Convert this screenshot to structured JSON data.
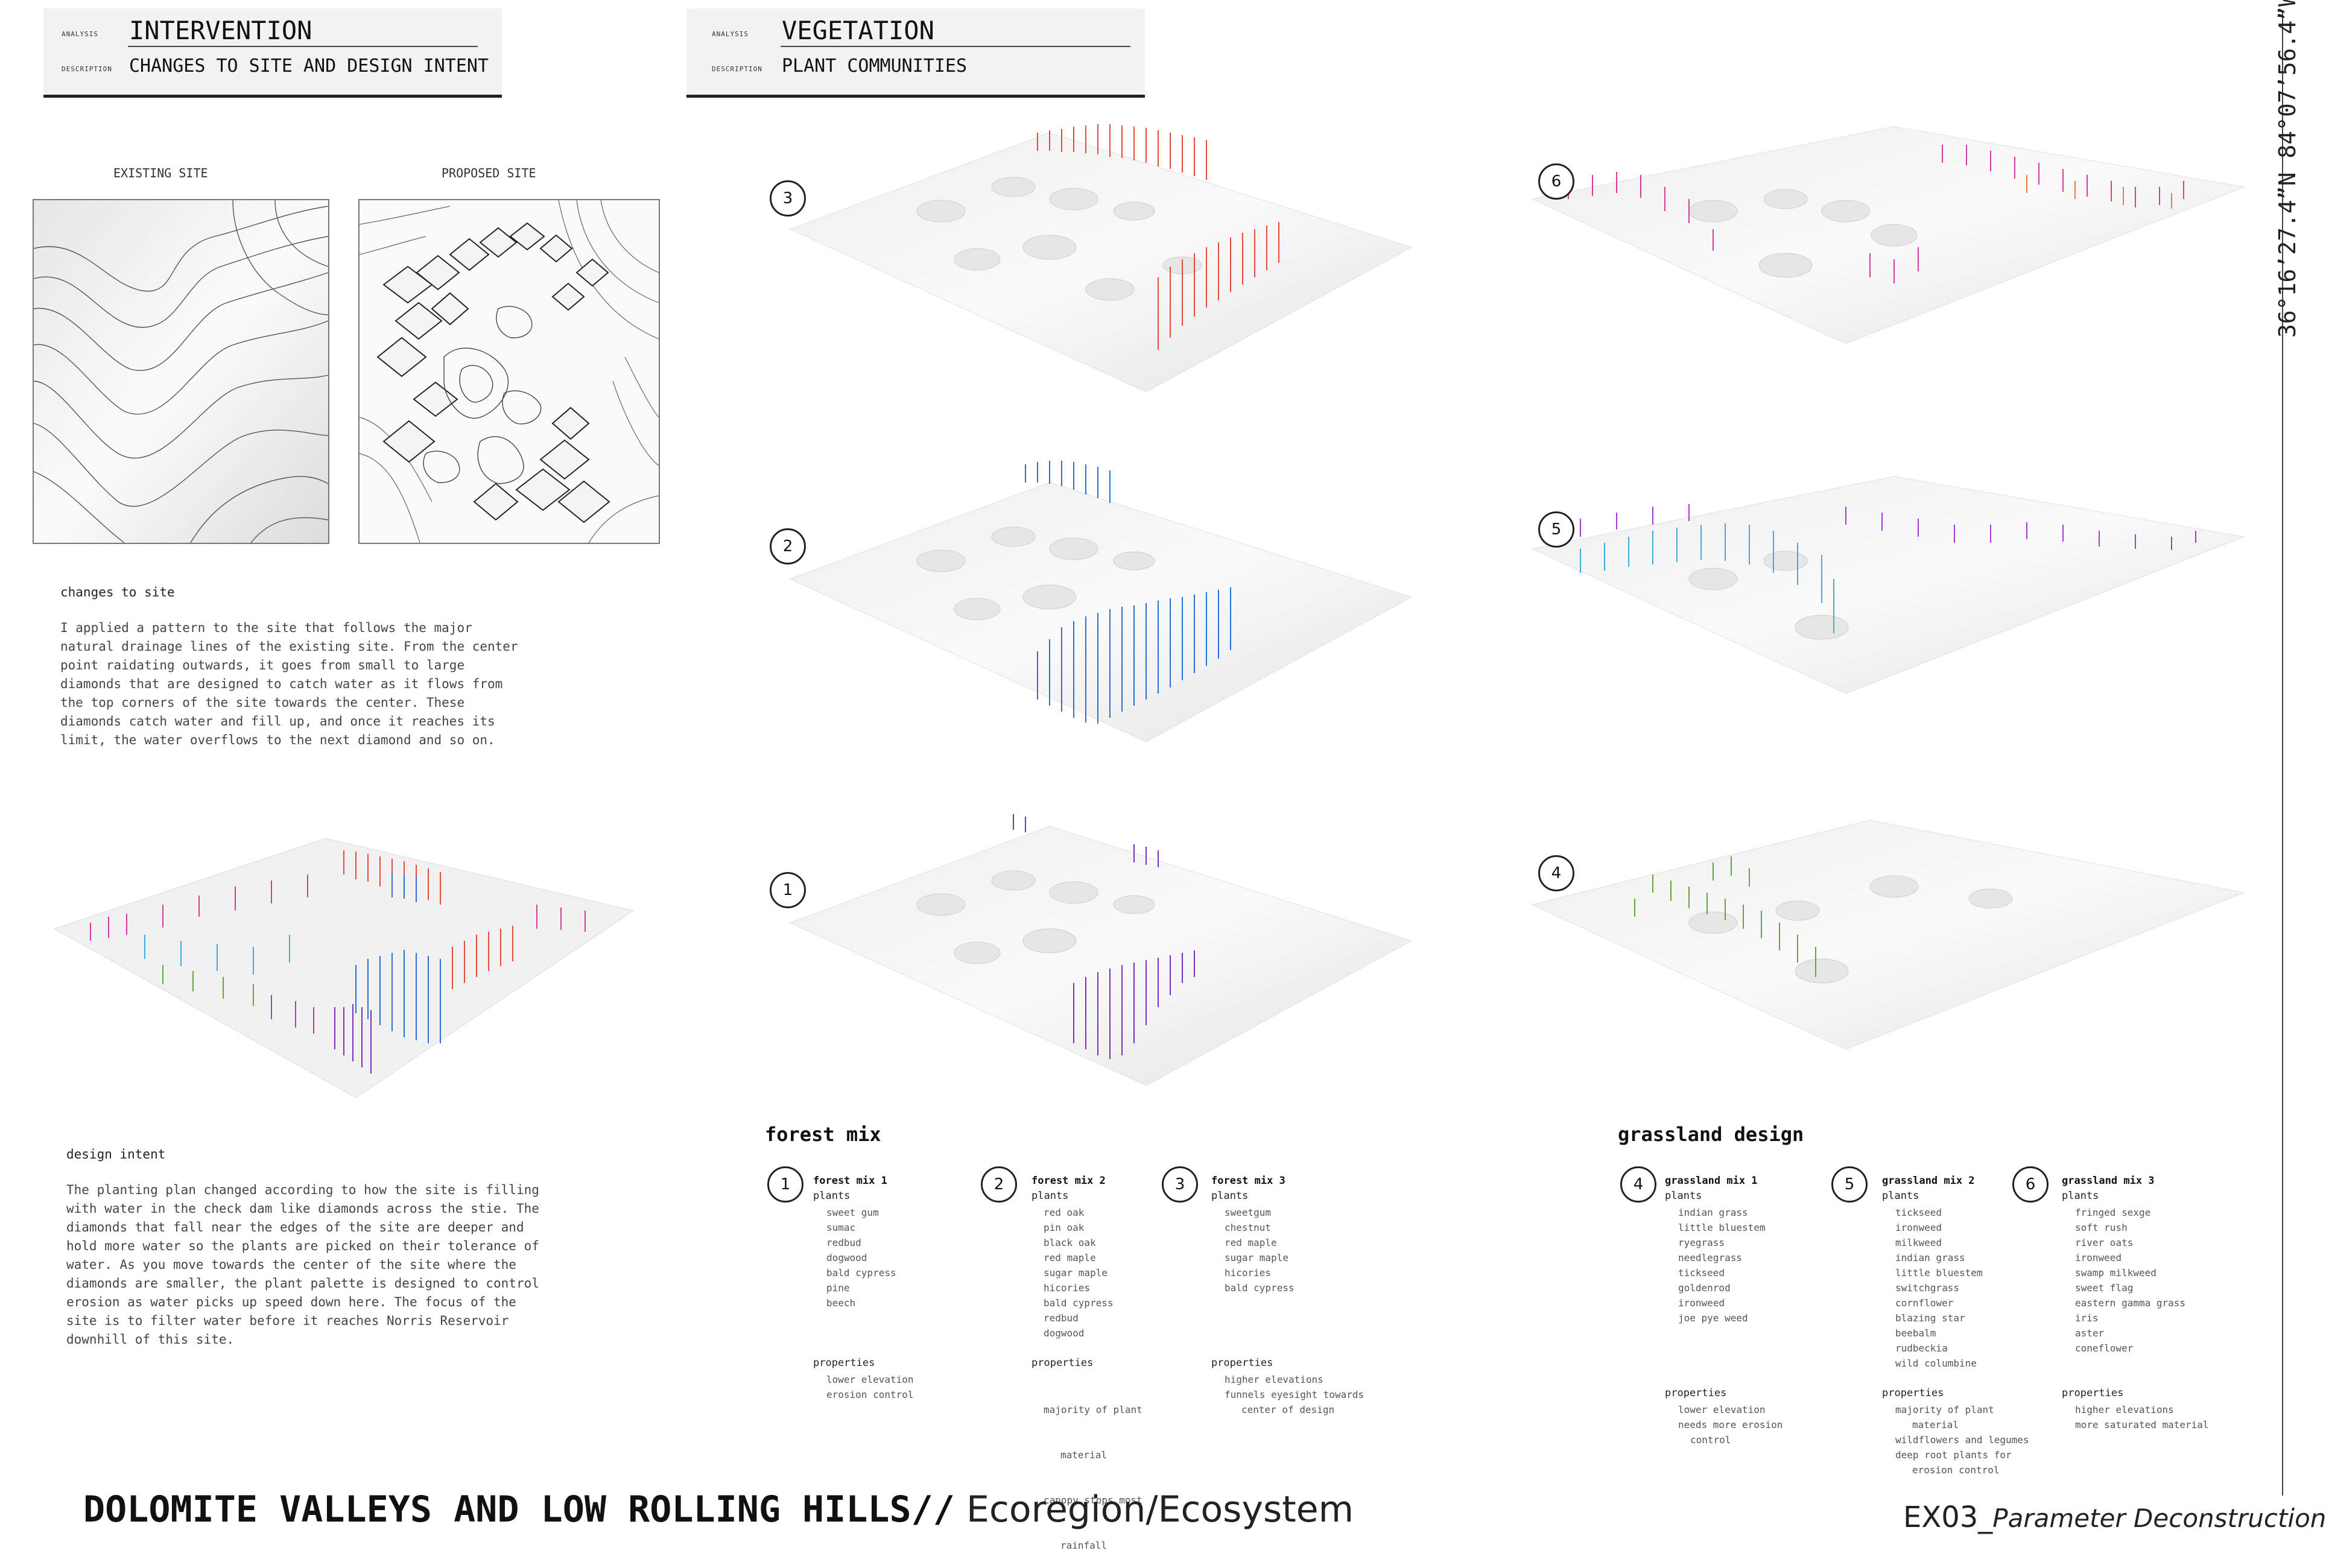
{
  "header_left": {
    "analysis_tag": "ANALYSIS",
    "title": "INTERVENTION",
    "description_tag": "DESCRIPTION",
    "description": "CHANGES TO SITE AND DESIGN INTENT"
  },
  "header_right": {
    "analysis_tag": "ANALYSIS",
    "title": "VEGETATION",
    "description_tag": "DESCRIPTION",
    "description": "PLANT COMMUNITIES"
  },
  "panels": {
    "existing": "EXISTING SITE",
    "proposed": "PROPOSED SITE"
  },
  "changes": {
    "heading": "changes to site",
    "text": "I applied a pattern to the site that follows the major natural drainage lines of the existing site. From the center point raidating outwards, it goes from small to large diamonds that are designed to catch water as it flows from the top corners of the site towards the center. These diamonds catch water and fill up, and once it reaches its limit, the water overflows to the next diamond and so on."
  },
  "intent": {
    "heading": "design intent",
    "text": "The planting plan changed according to how the site is filling with water in the check dam like diamonds across the stie. The diamonds that fall near the edges of the site are deeper and hold more water so the plants are picked on their tolerance of water. As you move towards the center of the site where the diamonds are smaller, the plant palette is designed to control erosion as water picks up speed down here. The focus of the site is to filter water before it reaches Norris Reservoir downhill of this site."
  },
  "diagram_numbers": [
    "3",
    "2",
    "1",
    "6",
    "5",
    "4"
  ],
  "forest": {
    "heading": "forest mix",
    "mixes": [
      {
        "num": "1",
        "title": "forest mix 1",
        "plants_label": "plants",
        "plants": [
          "sweet gum",
          "sumac",
          "redbud",
          "dogwood",
          "bald cypress",
          "pine",
          "beech"
        ],
        "props_label": "properties",
        "props": [
          "lower elevation",
          "erosion control"
        ]
      },
      {
        "num": "2",
        "title": "forest mix 2",
        "plants_label": "plants",
        "plants": [
          "red oak",
          "pin oak",
          "black oak",
          "red maple",
          "sugar maple",
          "hicories",
          "bald cypress",
          "redbud",
          "dogwood"
        ],
        "props_label": "properties",
        "props": [
          "majority of plant",
          "  material",
          "canopy stops most",
          "  rainfall"
        ]
      },
      {
        "num": "3",
        "title": "forest mix 3",
        "plants_label": "plants",
        "plants": [
          "sweetgum",
          "chestnut",
          "red maple",
          "sugar maple",
          "hicories",
          "bald cypress"
        ],
        "props_label": "properties",
        "props": [
          "higher elevations",
          "funnels eyesight towards",
          "  center of design"
        ]
      }
    ]
  },
  "grassland": {
    "heading": "grassland design",
    "mixes": [
      {
        "num": "4",
        "title": "grassland mix 1",
        "plants_label": "plants",
        "plants": [
          "indian grass",
          "little bluestem",
          "ryegrass",
          "needlegrass",
          "tickseed",
          "goldenrod",
          "ironweed",
          "joe pye weed"
        ],
        "props_label": "properties",
        "props": [
          "lower elevation",
          "needs more erosion",
          "  control"
        ]
      },
      {
        "num": "5",
        "title": "grassland mix 2",
        "plants_label": "plants",
        "plants": [
          "tickseed",
          "ironweed",
          "milkweed",
          "indian grass",
          "little bluestem",
          "switchgrass",
          "cornflower",
          "blazing star",
          "beebalm",
          "rudbeckia",
          "wild columbine"
        ],
        "props_label": "properties",
        "props": [
          "majority of plant",
          "  material",
          "wildflowers and legumes",
          "deep root plants for",
          "  erosion control"
        ]
      },
      {
        "num": "6",
        "title": "grassland mix 3",
        "plants_label": "plants",
        "plants": [
          "fringed sexge",
          "soft rush",
          "river oats",
          "ironweed",
          "swamp milkweed",
          "sweet flag",
          "eastern gamma grass",
          "iris",
          "aster",
          "coneflower"
        ],
        "props_label": "properties",
        "props": [
          "higher elevations",
          "more saturated material"
        ]
      }
    ]
  },
  "footer": {
    "bold_title": "DOLOMITE VALLEYS AND LOW ROLLING HILLS//",
    "subtitle": " Ecoregion/Ecosystem",
    "code": "EX03_",
    "code_sub": "Parameter Deconstruction"
  },
  "coordinates": "36°16’27.4”N 84°07’56.4”W",
  "colors": {
    "forest1": "#7a2fbf",
    "forest2": "#2a6fd6",
    "forest3": "#e8493a",
    "grass1": "#6aa33a",
    "grass2_a": "#3aaee0",
    "grass2_b": "#a43ad6",
    "grass3_a": "#d63a9c",
    "grass3_b": "#f07a3a"
  }
}
